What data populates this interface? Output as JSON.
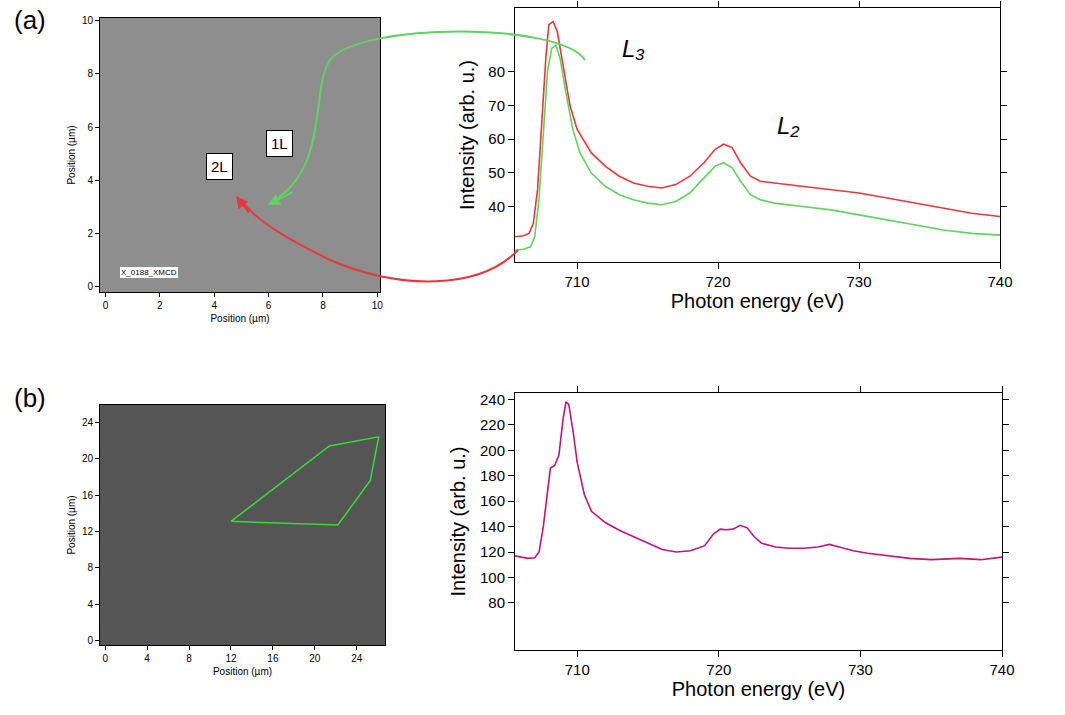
{
  "chart_data": [
    {
      "type": "image",
      "panel_label": "(a)",
      "xlabel": "Position (µm)",
      "ylabel": "Position (µm)",
      "xlim": [
        -0.2,
        10.1
      ],
      "ylim": [
        -0.2,
        10.1
      ],
      "xticks": [
        0,
        2,
        4,
        6,
        8,
        10
      ],
      "yticks": [
        0,
        2,
        4,
        6,
        8,
        10
      ],
      "grid": false,
      "annotations": [
        {
          "text": "1L",
          "x": 6.4,
          "y": 5.4
        },
        {
          "text": "2L",
          "x": 4.2,
          "y": 4.5
        },
        {
          "text": "X_0188_XMCD",
          "x": 1.6,
          "y": 0.55
        }
      ]
    },
    {
      "type": "line",
      "xlabel": "Photon energy (eV)",
      "ylabel": "Intensity (arb. u.)",
      "xlim": [
        705.6,
        740
      ],
      "ylim": [
        23.5,
        99
      ],
      "xticks": [
        710,
        720,
        730,
        740
      ],
      "yticks": [
        40,
        50,
        60,
        70,
        80
      ],
      "grid": false,
      "annotations": [
        {
          "text": "L₃",
          "x": 714,
          "y": 87
        },
        {
          "text": "L₂",
          "x": 725,
          "y": 64
        }
      ],
      "series": [
        {
          "color": "#e8383d",
          "x": [
            705.6,
            706.2,
            706.6,
            706.9,
            707.2,
            707.5,
            707.8,
            708.0,
            708.3,
            708.6,
            709.0,
            709.5,
            710,
            711,
            712,
            713,
            714,
            715,
            716,
            717,
            718,
            719,
            719.8,
            720.4,
            721,
            721.6,
            722.3,
            723,
            724,
            725,
            726,
            728,
            730,
            732,
            734,
            736,
            738,
            740
          ],
          "values": [
            31,
            31.3,
            32,
            35,
            45,
            65,
            85,
            94,
            95,
            92,
            82,
            70,
            63,
            56,
            52,
            49,
            47,
            46,
            45.5,
            46.5,
            49,
            53,
            57,
            58.5,
            57.5,
            53,
            49,
            47.5,
            47,
            46.5,
            46,
            45,
            44,
            42.5,
            41,
            39.5,
            38,
            37
          ]
        },
        {
          "color": "#5fd35f",
          "x": [
            705.6,
            706.2,
            706.7,
            707.0,
            707.3,
            707.6,
            707.9,
            708.2,
            708.5,
            708.8,
            709.2,
            709.7,
            710.2,
            711,
            712,
            713,
            714,
            715,
            716,
            717,
            718,
            719,
            719.8,
            720.4,
            721,
            721.6,
            722.3,
            723,
            724,
            726,
            728,
            730,
            732,
            734,
            736,
            738,
            740
          ],
          "values": [
            27,
            27.3,
            28,
            31,
            42,
            62,
            80,
            87,
            88,
            84,
            74,
            63,
            56,
            50,
            46,
            43.5,
            42,
            41,
            40.5,
            41.5,
            44,
            48.5,
            52,
            53,
            51.5,
            47.5,
            43.5,
            42,
            41,
            40,
            39,
            37.5,
            36,
            34.5,
            33,
            32,
            31.5
          ]
        }
      ]
    },
    {
      "type": "image",
      "panel_label": "(b)",
      "xlabel": "Position (µm)",
      "ylabel": "Position (µm)",
      "xlim": [
        -0.5,
        26.7
      ],
      "ylim": [
        -0.5,
        25.9
      ],
      "xticks": [
        0,
        4,
        8,
        12,
        16,
        20,
        24
      ],
      "yticks": [
        0,
        4,
        8,
        12,
        16,
        20,
        24
      ],
      "grid": false,
      "series": [
        {
          "type": "polygon",
          "color": "#33dd33",
          "x": [
            12.0,
            21.4,
            26.1,
            25.3,
            22.2
          ],
          "values": [
            13.1,
            21.4,
            22.4,
            17.6,
            12.7
          ]
        }
      ]
    },
    {
      "type": "line",
      "xlabel": "Photon energy (eV)",
      "ylabel": "Intensity (arb. u.)",
      "xlim": [
        705.6,
        740
      ],
      "ylim": [
        43,
        245
      ],
      "xticks": [
        710,
        720,
        730,
        740
      ],
      "yticks": [
        80,
        100,
        120,
        140,
        160,
        180,
        200,
        220,
        240
      ],
      "grid": false,
      "series": [
        {
          "color": "#c0157a",
          "x": [
            705.6,
            706.5,
            707,
            707.3,
            707.6,
            707.9,
            708.1,
            708.4,
            708.7,
            709.0,
            709.2,
            709.4,
            709.7,
            710,
            710.5,
            711,
            712,
            713,
            714,
            715,
            716,
            717,
            718,
            719,
            719.6,
            720.1,
            720.5,
            721,
            721.5,
            722,
            722.5,
            723,
            724,
            725,
            726,
            727,
            727.8,
            728.5,
            729.5,
            730.5,
            732,
            733.5,
            735,
            737,
            738.5,
            740
          ],
          "values": [
            117,
            115,
            115.5,
            120,
            140,
            170,
            186,
            188,
            196,
            225,
            238,
            236,
            215,
            190,
            165,
            152,
            143,
            137,
            132,
            127,
            122,
            120,
            121,
            125,
            134,
            138,
            137.5,
            138,
            141,
            139,
            132,
            127,
            124,
            123,
            123,
            124,
            126,
            124,
            121,
            119,
            117,
            115,
            114,
            115,
            114,
            116
          ]
        }
      ]
    }
  ]
}
